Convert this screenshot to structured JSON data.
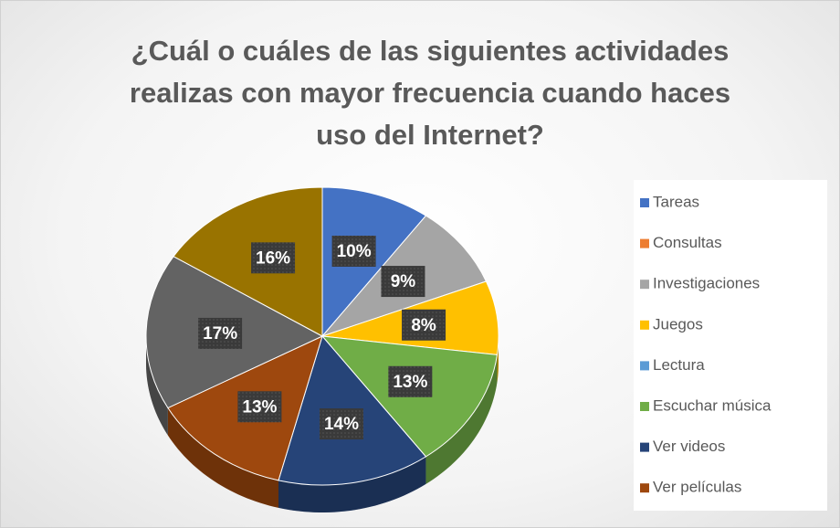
{
  "chart_data": {
    "type": "pie",
    "title": "¿Cuál o cuáles de las siguientes actividades realizas con mayor frecuencia cuando haces uso del Internet?",
    "categories": [
      "Tareas",
      "Consultas",
      "Investigaciones",
      "Juegos",
      "Lectura",
      "Escuchar música",
      "Ver videos",
      "Ver películas",
      null,
      null
    ],
    "values": [
      10,
      0,
      9,
      8,
      0,
      13,
      14,
      13,
      17,
      16
    ],
    "value_labels": [
      "10%",
      null,
      "9%",
      "8%",
      null,
      "13%",
      "14%",
      "13%",
      "17%",
      "16%"
    ],
    "colors": [
      "#4472c4",
      "#ed7d31",
      "#a5a5a5",
      "#ffc000",
      "#5b9bd5",
      "#70ad47",
      "#264478",
      "#9e480e",
      "#636363",
      "#997300"
    ],
    "legend": "right"
  }
}
